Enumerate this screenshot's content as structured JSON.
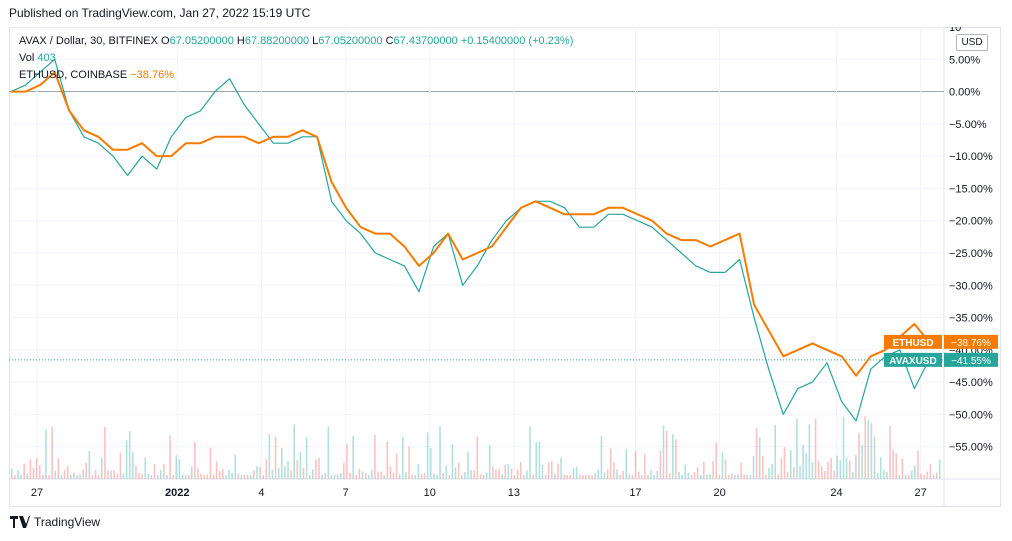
{
  "caption": "Published on TradingView.com, Jan 27, 2022 15:19 UTC",
  "legend": {
    "symbol": "AVAX / Dollar, 30, BITFINEX",
    "o_label": "O",
    "o_value": "67.05200000",
    "h_label": "H",
    "h_value": "67.88200000",
    "l_label": "L",
    "l_value": "67.05200000",
    "c_label": "C",
    "c_value": "67.43700000",
    "change": "+0.15400000 (+0.23%)",
    "vol_label": "Vol",
    "vol_value": "403",
    "compare_label": "ETHUSD, COINBASE",
    "compare_value": "−38.76%"
  },
  "usd_button": "USD",
  "footer_logo": "TradingView",
  "colors": {
    "avax": "#26a69a",
    "avax_down": "#ef5350",
    "eth": "#f57c00",
    "grid": "#f0f3fa",
    "text": "#131722"
  },
  "chart_data": {
    "type": "line",
    "y_scale": "percent",
    "ylim": [
      -60,
      10
    ],
    "y_ticks": [
      "10",
      "5.00%",
      "0.00%",
      "−5.00%",
      "−10.00%",
      "−15.00%",
      "−20.00%",
      "−25.00%",
      "−30.00%",
      "−35.00%",
      "−40.00%",
      "−45.00%",
      "−50.00%",
      "−55.00%"
    ],
    "y_tick_values": [
      10,
      5,
      0,
      -5,
      -10,
      -15,
      -20,
      -25,
      -30,
      -35,
      -40,
      -45,
      -50,
      -55
    ],
    "x_ticks": [
      "27",
      "2022",
      "4",
      "7",
      "10",
      "13",
      "17",
      "20",
      "24",
      "27"
    ],
    "x_tick_positions": [
      0.03,
      0.18,
      0.27,
      0.36,
      0.45,
      0.54,
      0.67,
      0.76,
      0.885,
      0.975
    ],
    "series": [
      {
        "name": "AVAXUSD",
        "last_label": "−41.55%",
        "values": [
          0,
          1,
          3,
          5,
          -3,
          -7,
          -8,
          -10,
          -13,
          -10,
          -12,
          -7,
          -4,
          -3,
          0,
          2,
          -2,
          -5,
          -8,
          -8,
          -7,
          -7,
          -17,
          -20,
          -22,
          -25,
          -26,
          -27,
          -31,
          -24,
          -22,
          -30,
          -27,
          -23,
          -20,
          -18,
          -17,
          -17,
          -18,
          -21,
          -21,
          -19,
          -19,
          -20,
          -21,
          -23,
          -25,
          -27,
          -28,
          -28,
          -26,
          -35,
          -43,
          -50,
          -46,
          -45,
          -42,
          -48,
          -51,
          -43,
          -41,
          -40,
          -46,
          -41.55
        ]
      },
      {
        "name": "ETHUSD",
        "last_label": "−38.76%",
        "values": [
          0,
          0,
          1,
          3,
          -3,
          -6,
          -7,
          -9,
          -9,
          -8,
          -10,
          -10,
          -8,
          -8,
          -7,
          -7,
          -7,
          -8,
          -7,
          -7,
          -6,
          -7,
          -14,
          -18,
          -21,
          -22,
          -22,
          -24,
          -27,
          -25,
          -22,
          -26,
          -25,
          -24,
          -21,
          -18,
          -17,
          -18,
          -19,
          -19,
          -19,
          -18,
          -18,
          -19,
          -20,
          -22,
          -23,
          -23,
          -24,
          -23,
          -22,
          -33,
          -37,
          -41,
          -40,
          -39,
          -40,
          -41,
          -44,
          -41,
          -40,
          -38,
          -36,
          -38.76
        ]
      }
    ],
    "volume": {
      "label": "Vol",
      "last": 403
    }
  }
}
